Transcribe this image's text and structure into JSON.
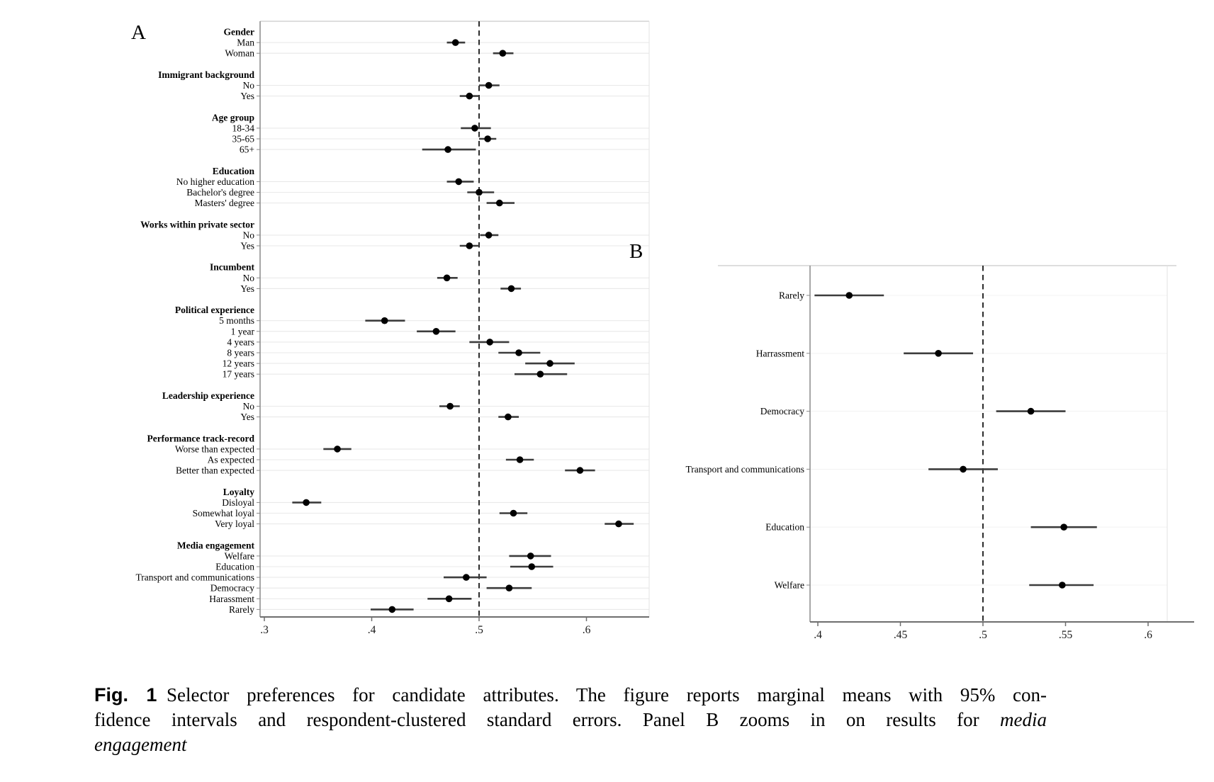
{
  "figure_type": "forest-plot-figure",
  "chart_data": [
    {
      "type": "scatter",
      "subtype": "forest-dot-ci",
      "panel": "A",
      "xlim": [
        0.296,
        0.658
      ],
      "x_ticks": [
        0.3,
        0.4,
        0.5,
        0.6
      ],
      "x_tick_labels": [
        ".3",
        ".4",
        ".5",
        ".6"
      ],
      "reference_line_x": 0.5,
      "grid": true,
      "legend": "none",
      "groups": [
        {
          "header": "Gender",
          "items": [
            {
              "label": "Man",
              "value": 0.478,
              "ci": [
                0.47,
                0.487
              ]
            },
            {
              "label": "Woman",
              "value": 0.522,
              "ci": [
                0.513,
                0.532
              ]
            }
          ]
        },
        {
          "header": "Immigrant background",
          "items": [
            {
              "label": "No",
              "value": 0.509,
              "ci": [
                0.5,
                0.519
              ]
            },
            {
              "label": "Yes",
              "value": 0.491,
              "ci": [
                0.482,
                0.5
              ]
            }
          ]
        },
        {
          "header": "Age group",
          "items": [
            {
              "label": "18-34",
              "value": 0.496,
              "ci": [
                0.483,
                0.511
              ]
            },
            {
              "label": "35-65",
              "value": 0.508,
              "ci": [
                0.5,
                0.516
              ]
            },
            {
              "label": "65+",
              "value": 0.471,
              "ci": [
                0.447,
                0.497
              ]
            }
          ]
        },
        {
          "header": "Education",
          "items": [
            {
              "label": "No higher education",
              "value": 0.481,
              "ci": [
                0.47,
                0.495
              ]
            },
            {
              "label": "Bachelor's degree",
              "value": 0.5,
              "ci": [
                0.489,
                0.514
              ]
            },
            {
              "label": "Masters' degree",
              "value": 0.519,
              "ci": [
                0.507,
                0.533
              ]
            }
          ]
        },
        {
          "header": "Works within private sector",
          "items": [
            {
              "label": "No",
              "value": 0.509,
              "ci": [
                0.501,
                0.518
              ]
            },
            {
              "label": "Yes",
              "value": 0.491,
              "ci": [
                0.482,
                0.5
              ]
            }
          ]
        },
        {
          "header": "Incumbent",
          "items": [
            {
              "label": "No",
              "value": 0.47,
              "ci": [
                0.461,
                0.48
              ]
            },
            {
              "label": "Yes",
              "value": 0.53,
              "ci": [
                0.52,
                0.539
              ]
            }
          ]
        },
        {
          "header": "Political experience",
          "items": [
            {
              "label": "5 months",
              "value": 0.412,
              "ci": [
                0.394,
                0.431
              ]
            },
            {
              "label": "1 year",
              "value": 0.46,
              "ci": [
                0.442,
                0.478
              ]
            },
            {
              "label": "4 years",
              "value": 0.51,
              "ci": [
                0.491,
                0.528
              ]
            },
            {
              "label": "8 years",
              "value": 0.537,
              "ci": [
                0.518,
                0.557
              ]
            },
            {
              "label": "12 years",
              "value": 0.566,
              "ci": [
                0.543,
                0.589
              ]
            },
            {
              "label": "17 years",
              "value": 0.557,
              "ci": [
                0.533,
                0.582
              ]
            }
          ]
        },
        {
          "header": "Leadership experience",
          "items": [
            {
              "label": "No",
              "value": 0.473,
              "ci": [
                0.463,
                0.482
              ]
            },
            {
              "label": "Yes",
              "value": 0.527,
              "ci": [
                0.518,
                0.537
              ]
            }
          ]
        },
        {
          "header": "Performance track-record",
          "items": [
            {
              "label": "Worse than expected",
              "value": 0.368,
              "ci": [
                0.355,
                0.381
              ]
            },
            {
              "label": "As expected",
              "value": 0.538,
              "ci": [
                0.525,
                0.551
              ]
            },
            {
              "label": "Better than expected",
              "value": 0.594,
              "ci": [
                0.58,
                0.608
              ]
            }
          ]
        },
        {
          "header": "Loyalty",
          "items": [
            {
              "label": "Disloyal",
              "value": 0.339,
              "ci": [
                0.326,
                0.353
              ]
            },
            {
              "label": "Somewhat loyal",
              "value": 0.532,
              "ci": [
                0.519,
                0.545
              ]
            },
            {
              "label": "Very loyal",
              "value": 0.63,
              "ci": [
                0.617,
                0.644
              ]
            }
          ]
        },
        {
          "header": "Media engagement",
          "items": [
            {
              "label": "Welfare",
              "value": 0.548,
              "ci": [
                0.528,
                0.567
              ]
            },
            {
              "label": "Education",
              "value": 0.549,
              "ci": [
                0.529,
                0.569
              ]
            },
            {
              "label": "Transport and communications",
              "value": 0.488,
              "ci": [
                0.467,
                0.507
              ]
            },
            {
              "label": "Democracy",
              "value": 0.528,
              "ci": [
                0.507,
                0.549
              ]
            },
            {
              "label": "Harassment",
              "value": 0.472,
              "ci": [
                0.452,
                0.493
              ]
            },
            {
              "label": "Rarely",
              "value": 0.419,
              "ci": [
                0.399,
                0.439
              ]
            }
          ]
        }
      ]
    },
    {
      "type": "scatter",
      "subtype": "forest-dot-ci",
      "panel": "B",
      "xlim": [
        0.395,
        0.612
      ],
      "x_ticks": [
        0.4,
        0.45,
        0.5,
        0.55,
        0.6
      ],
      "x_tick_labels": [
        ".4",
        ".45",
        ".5",
        ".55",
        ".6"
      ],
      "reference_line_x": 0.5,
      "grid": true,
      "legend": "none",
      "items": [
        {
          "label": "Rarely",
          "value": 0.419,
          "ci": [
            0.398,
            0.44
          ]
        },
        {
          "label": "Harrassment",
          "value": 0.473,
          "ci": [
            0.452,
            0.494
          ]
        },
        {
          "label": "Democracy",
          "value": 0.529,
          "ci": [
            0.508,
            0.55
          ]
        },
        {
          "label": "Transport and communications",
          "value": 0.488,
          "ci": [
            0.467,
            0.509
          ]
        },
        {
          "label": "Education",
          "value": 0.549,
          "ci": [
            0.529,
            0.569
          ]
        },
        {
          "label": "Welfare",
          "value": 0.548,
          "ci": [
            0.528,
            0.567
          ]
        }
      ]
    }
  ],
  "colors": {
    "point": "#000000",
    "ci_line": "#3d3d3d",
    "reference_line": "#222222",
    "axis_line": "#6e6e6e",
    "border_line": "#c9c9c9",
    "gridline_a": "#e9e9e9",
    "gridline_b": "#f3f3f3",
    "tick": "#8a8a8a",
    "text": "#1a1a1a"
  },
  "caption": {
    "lines": [
      [
        {
          "text": "Fig. 1",
          "bold": true,
          "sans": true
        },
        {
          "text": " Selector preferences for candidate attributes. The figure reports marginal means with 95% con-"
        }
      ],
      [
        {
          "text": "fidence intervals and respondent-clustered standard errors. Panel B zooms in on results for "
        },
        {
          "text": "media",
          "italic": true
        }
      ],
      [
        {
          "text": "engagement",
          "italic": true
        }
      ]
    ]
  }
}
